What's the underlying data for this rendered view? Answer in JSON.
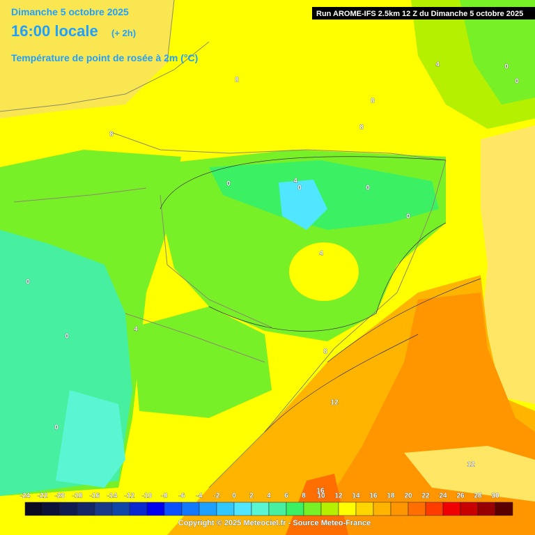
{
  "header": {
    "date": "Dimanche 5 octobre 2025",
    "time": "16:00 locale",
    "offset": "(+ 2h)",
    "parameter": "Température de point de rosée à 2m (°C)",
    "run": "Run AROME-IFS 2.5km 12 Z du Dimanche 5 octobre 2025"
  },
  "map": {
    "contour_labels": [
      "8",
      "8",
      "8",
      "8",
      "4",
      "0",
      "0",
      "4",
      "0",
      "0",
      "0",
      "0",
      "4",
      "0",
      "4",
      "0",
      "0",
      "8",
      "12",
      "16",
      "12"
    ]
  },
  "colorbar": {
    "labels": [
      -24,
      -22,
      -20,
      -18,
      -16,
      -14,
      -12,
      -10,
      -8,
      -6,
      -4,
      -2,
      0,
      2,
      4,
      6,
      8,
      10,
      12,
      14,
      16,
      18,
      20,
      22,
      24,
      26,
      28,
      30
    ],
    "colors": [
      "#0a0a20",
      "#0c1238",
      "#101c50",
      "#142868",
      "#183a88",
      "#1046a8",
      "#0a28d0",
      "#0000f0",
      "#0a50ff",
      "#1478ff",
      "#1ea0ff",
      "#32c8ff",
      "#50e6ff",
      "#5af5d2",
      "#46f0a0",
      "#3cf064",
      "#78f028",
      "#b4f000",
      "#ffff00",
      "#ffd700",
      "#ffb400",
      "#ff9600",
      "#ff6e00",
      "#ff3c00",
      "#f00000",
      "#c80000",
      "#960000",
      "#5a0000"
    ]
  },
  "footer": {
    "copyright": "Copyright © 2025 Meteociel.fr - Source Meteo-France"
  }
}
